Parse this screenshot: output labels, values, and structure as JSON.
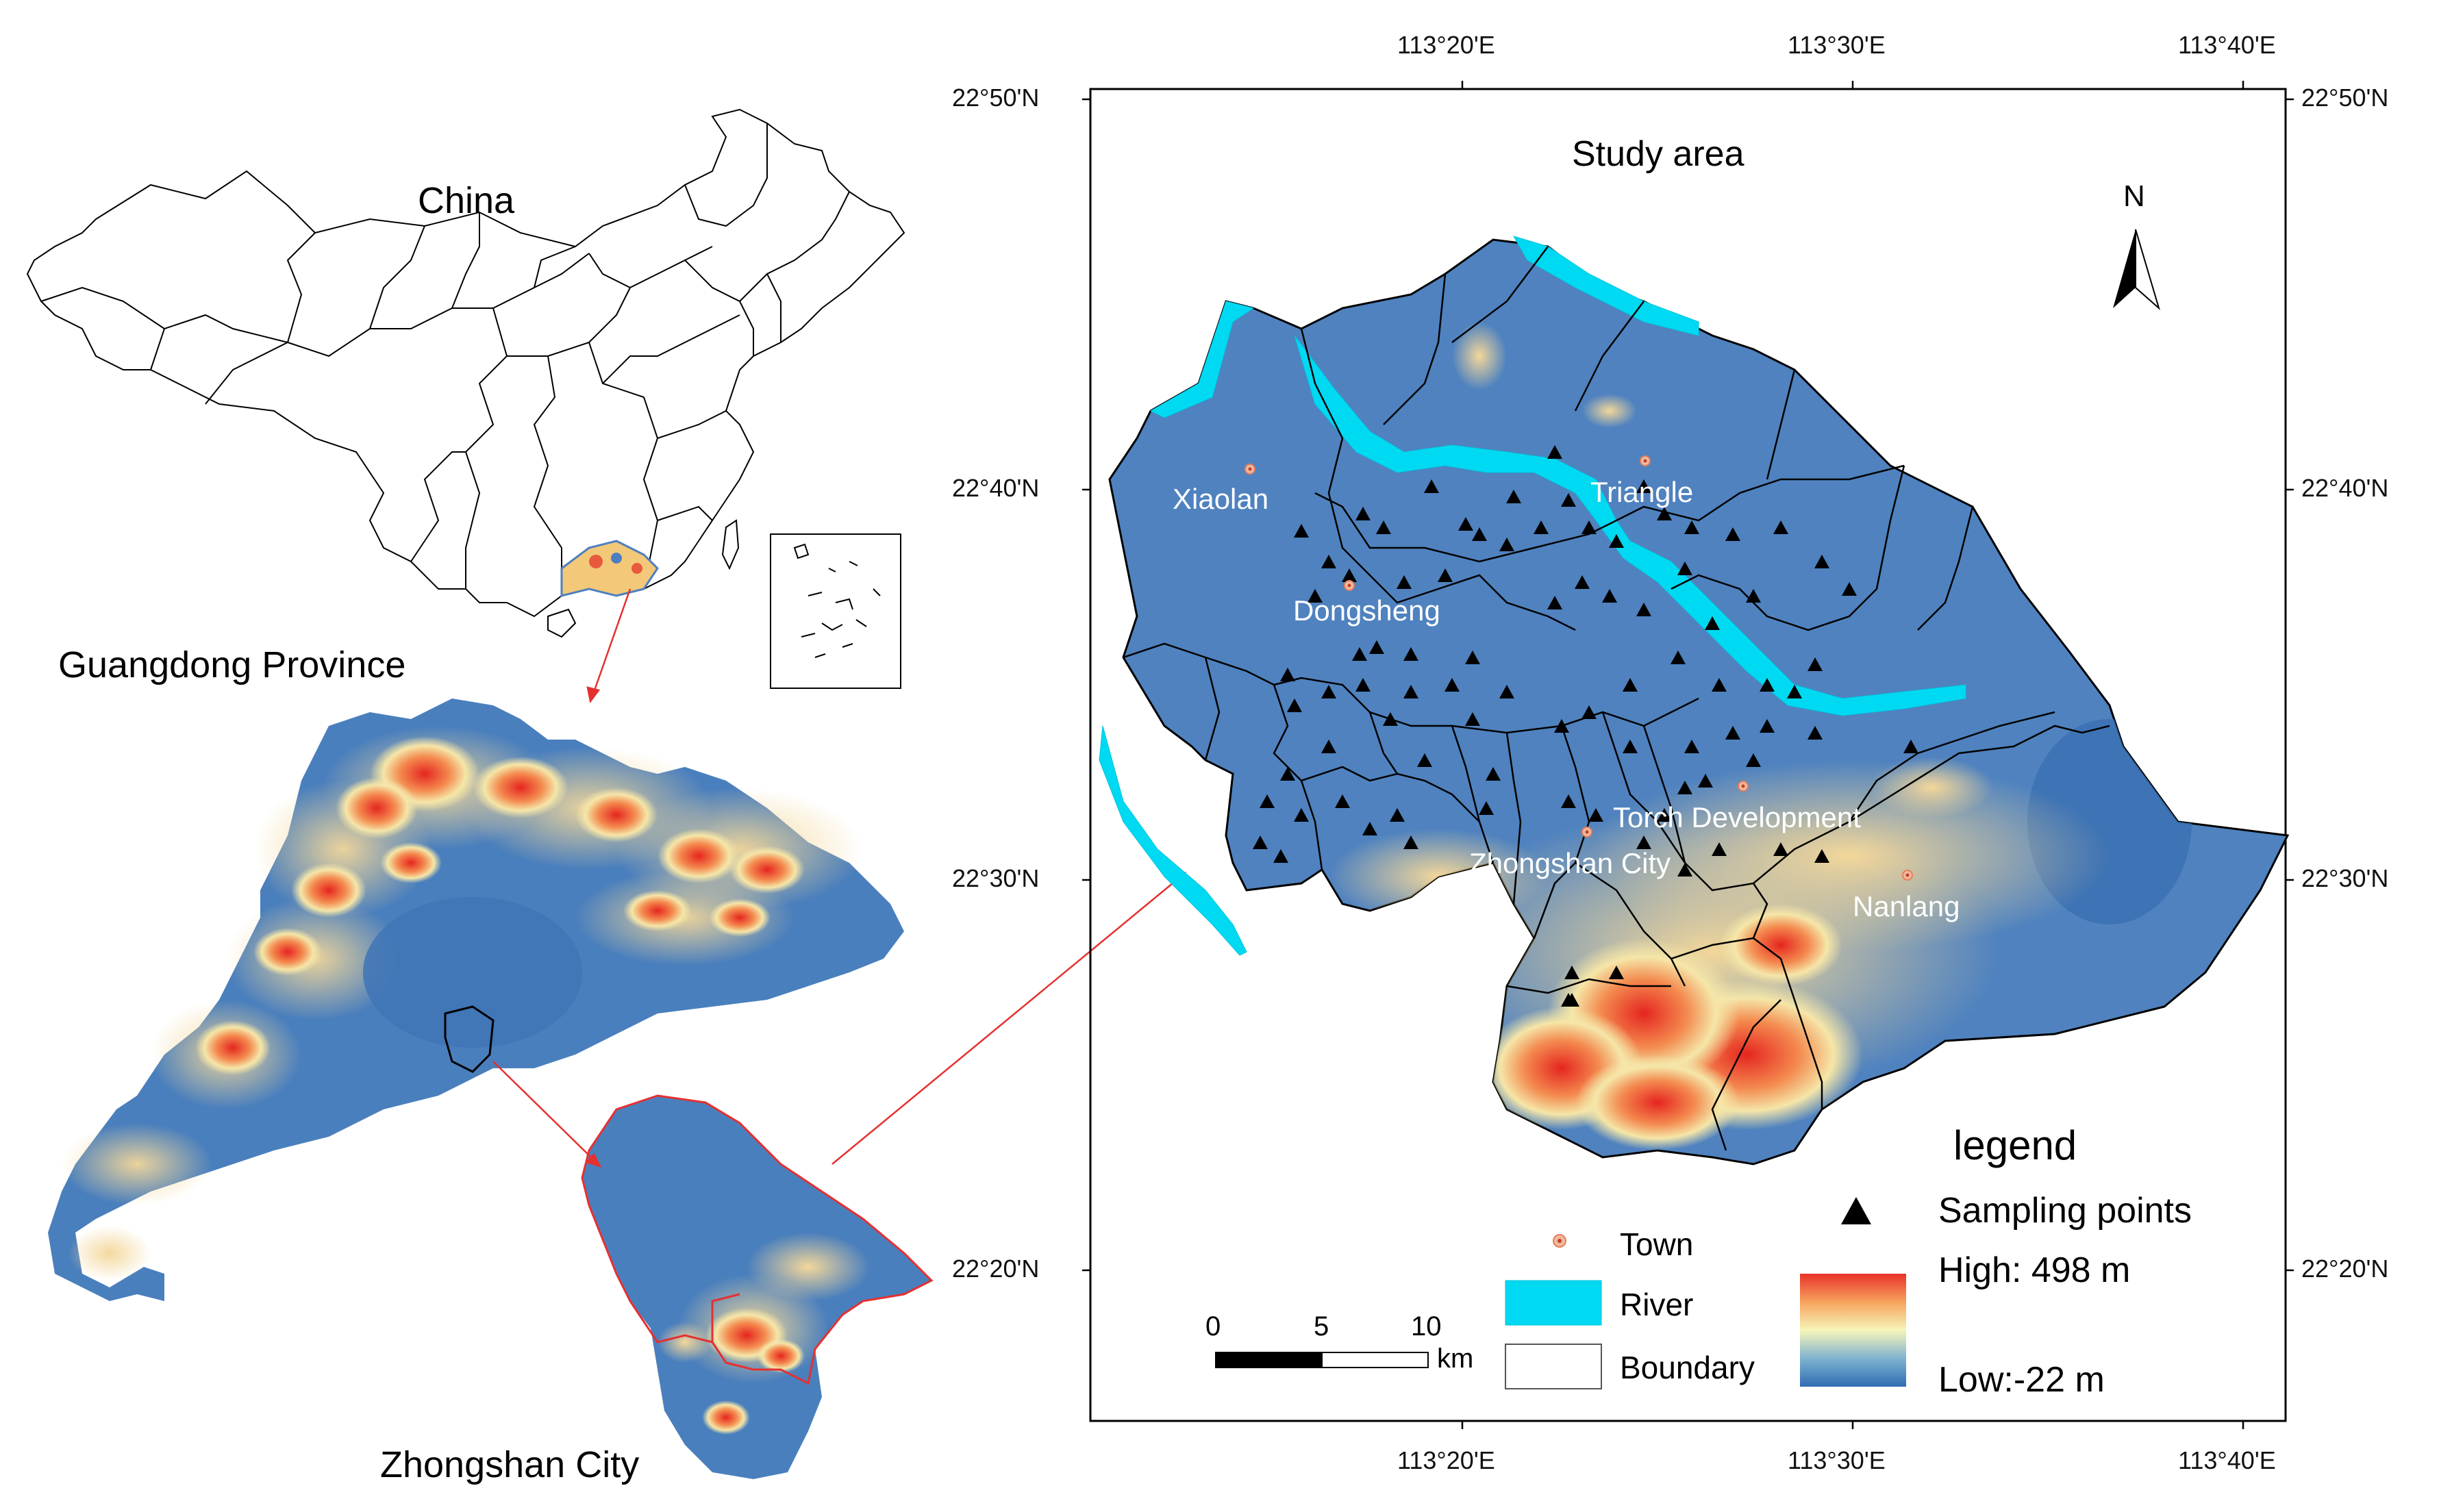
{
  "overview": {
    "china_title": "China",
    "province_title": "Guangdong Province",
    "city_title": "Zhongshan City"
  },
  "study_map": {
    "title": "Study area",
    "north_label": "N",
    "lon_ticks": [
      "113°20'E",
      "113°30'E",
      "113°40'E"
    ],
    "lat_ticks": [
      "22°50'N",
      "22°40'N",
      "22°30'N",
      "22°20'N"
    ],
    "towns": [
      "Xiaolan",
      "Triangle",
      "Dongsheng",
      "Torch Development",
      "Zhongshan City",
      "Nanlang"
    ]
  },
  "legend": {
    "title": "legend",
    "sampling_points": "Sampling points",
    "town": "Town",
    "river": "River",
    "boundary": "Boundary",
    "high": "High: 498 m",
    "low": "Low:-22 m",
    "river_color": "#00d9f2"
  },
  "scale_bar": {
    "ticks": [
      "0",
      "5",
      "10"
    ],
    "unit": "km"
  }
}
